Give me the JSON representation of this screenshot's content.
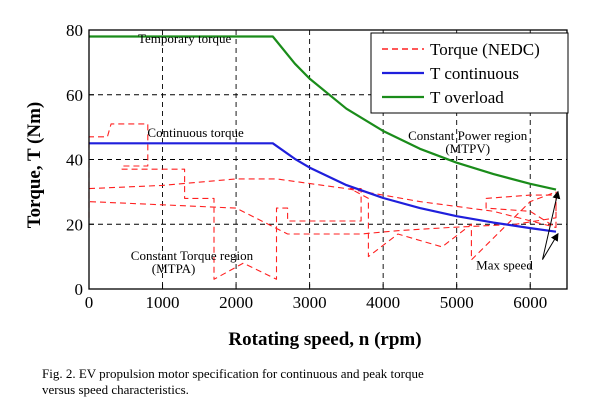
{
  "chart_data": {
    "type": "line",
    "xlabel": "Rotating speed, n (rpm)",
    "ylabel": "Torque, T (Nm)",
    "xlim": [
      0,
      6500
    ],
    "ylim": [
      0,
      80
    ],
    "xticks": [
      0,
      1000,
      2000,
      3000,
      4000,
      5000,
      6000
    ],
    "yticks": [
      0,
      20,
      40,
      60,
      80
    ],
    "grid": true,
    "grid_style": "dashed",
    "legend_position": "top-right",
    "series": [
      {
        "name": "Torque (NEDC)",
        "color": "#ff2020",
        "style": "dashed",
        "x": [
          0,
          0,
          250,
          300,
          300,
          800,
          800,
          450,
          450,
          1300,
          1300,
          1700,
          1700,
          1700,
          2100,
          2550,
          2550,
          2700,
          2700,
          3000,
          3700,
          3700,
          3550,
          3800,
          3800,
          4200,
          4800,
          5200,
          5200,
          5600,
          6000,
          6350,
          6350,
          6000,
          5400,
          5400,
          6000,
          6350,
          6350,
          5800,
          4900,
          4200,
          3700,
          2700,
          2000,
          1000,
          0,
          0,
          1000,
          2000,
          2550,
          3500,
          4500,
          5500,
          6350
        ],
        "y": [
          22,
          47,
          47,
          51,
          51,
          51,
          38,
          38,
          37,
          37,
          28,
          28,
          15,
          3,
          8,
          3,
          25,
          25,
          21,
          21,
          21,
          31,
          31,
          28,
          10,
          17,
          13,
          20,
          9,
          18,
          27,
          30,
          19,
          24,
          25,
          28,
          29,
          29,
          22,
          20,
          19,
          18,
          17,
          17,
          25,
          26,
          27,
          31,
          32,
          34,
          34,
          31,
          27,
          24,
          19
        ]
      },
      {
        "name": "T continuous",
        "color": "#1f1fdc",
        "style": "solid",
        "x": [
          0,
          2500,
          2800,
          3000,
          3500,
          4000,
          4500,
          5000,
          5500,
          6000,
          6350
        ],
        "y": [
          45,
          45,
          40.2,
          37.5,
          32.1,
          28.1,
          25.0,
          22.5,
          20.5,
          18.8,
          17.7
        ]
      },
      {
        "name": "T overload",
        "color": "#1a8c1a",
        "style": "solid",
        "x": [
          0,
          2500,
          2800,
          3000,
          3500,
          4000,
          4500,
          5000,
          5500,
          6000,
          6350
        ],
        "y": [
          78,
          78,
          69.6,
          65.0,
          55.7,
          48.8,
          43.3,
          39.0,
          35.5,
          32.5,
          30.7
        ]
      }
    ],
    "annotations": [
      {
        "text": "Temporary torque",
        "x": 1300,
        "y": 76
      },
      {
        "text": "Continuous torque",
        "x": 1450,
        "y": 47
      },
      {
        "text": "Constant Power region",
        "x": 5150,
        "y": 46
      },
      {
        "text": "(MTPV)",
        "x": 5150,
        "y": 42
      },
      {
        "text": "Constant Torque region",
        "x": 1400,
        "y": 9
      },
      {
        "text": "(MTPA)",
        "x": 1150,
        "y": 5
      },
      {
        "text": "Max speed",
        "x": 5650,
        "y": 6
      }
    ]
  },
  "caption": {
    "line1": "Fig. 2. EV propulsion motor specification for continuous and peak torque",
    "line2": "versus speed characteristics."
  }
}
